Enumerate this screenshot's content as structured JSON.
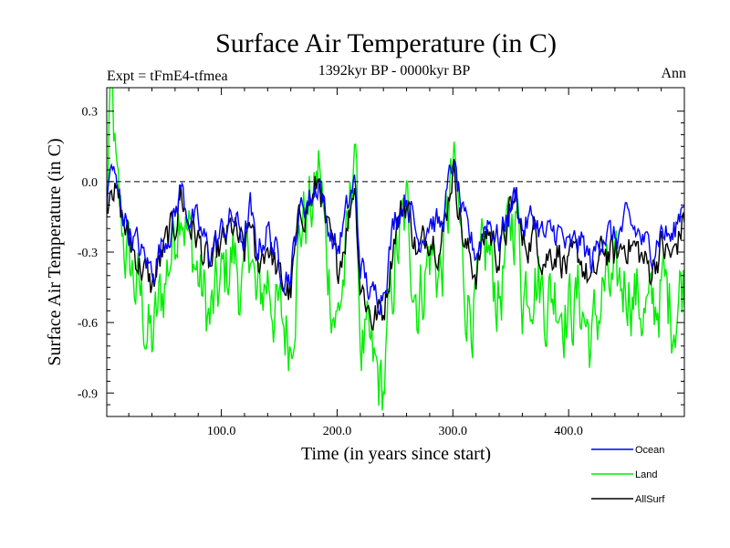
{
  "chart_data": {
    "type": "line",
    "title": "Surface Air Temperature (in C)",
    "subtitle_left": "Expt = tFmE4-tfmea",
    "subtitle_center": "1392kyr BP - 0000kyr BP",
    "subtitle_right": "Ann",
    "xlabel": "Time (in years since start)",
    "ylabel": "Surface Air Temperature (in C)",
    "xlim": [
      1,
      500
    ],
    "ylim": [
      -1.0,
      0.4
    ],
    "x_ticks": [
      100,
      200,
      300,
      400
    ],
    "x_tick_labels": [
      "100.0",
      "200.0",
      "300.0",
      "400.0"
    ],
    "y_ticks": [
      0.3,
      0.0,
      -0.3,
      -0.6,
      -0.9
    ],
    "y_tick_labels": [
      "0.3",
      "0.0",
      "-0.3",
      "-0.6",
      "-0.9"
    ],
    "reference_line": 0.0,
    "legend_position": "bottom-right",
    "series": [
      {
        "name": "Ocean",
        "color": "#0000ff",
        "anchors": [
          [
            1,
            -0.1
          ],
          [
            5,
            0.08
          ],
          [
            10,
            -0.05
          ],
          [
            20,
            -0.2
          ],
          [
            30,
            -0.3
          ],
          [
            40,
            -0.38
          ],
          [
            50,
            -0.25
          ],
          [
            60,
            -0.15
          ],
          [
            65,
            -0.02
          ],
          [
            70,
            -0.12
          ],
          [
            80,
            -0.2
          ],
          [
            90,
            -0.3
          ],
          [
            100,
            -0.22
          ],
          [
            110,
            -0.15
          ],
          [
            120,
            -0.25
          ],
          [
            125,
            -0.12
          ],
          [
            130,
            -0.3
          ],
          [
            140,
            -0.2
          ],
          [
            150,
            -0.35
          ],
          [
            160,
            -0.4
          ],
          [
            165,
            -0.2
          ],
          [
            170,
            -0.1
          ],
          [
            180,
            -0.05
          ],
          [
            185,
            0.02
          ],
          [
            190,
            -0.15
          ],
          [
            200,
            -0.3
          ],
          [
            210,
            -0.1
          ],
          [
            215,
            0.0
          ],
          [
            220,
            -0.35
          ],
          [
            230,
            -0.5
          ],
          [
            240,
            -0.45
          ],
          [
            250,
            -0.15
          ],
          [
            260,
            -0.05
          ],
          [
            270,
            -0.25
          ],
          [
            280,
            -0.15
          ],
          [
            290,
            -0.2
          ],
          [
            300,
            0.08
          ],
          [
            305,
            -0.05
          ],
          [
            310,
            -0.2
          ],
          [
            320,
            -0.3
          ],
          [
            330,
            -0.15
          ],
          [
            340,
            -0.25
          ],
          [
            350,
            -0.1
          ],
          [
            355,
            -0.05
          ],
          [
            360,
            -0.2
          ],
          [
            370,
            -0.15
          ],
          [
            380,
            -0.25
          ],
          [
            390,
            -0.2
          ],
          [
            400,
            -0.3
          ],
          [
            410,
            -0.25
          ],
          [
            420,
            -0.35
          ],
          [
            430,
            -0.2
          ],
          [
            440,
            -0.25
          ],
          [
            450,
            -0.18
          ],
          [
            460,
            -0.22
          ],
          [
            470,
            -0.3
          ],
          [
            480,
            -0.2
          ],
          [
            490,
            -0.25
          ],
          [
            500,
            -0.05
          ]
        ]
      },
      {
        "name": "Land",
        "color": "#00ee00",
        "anchors": [
          [
            1,
            -0.2
          ],
          [
            3,
            0.25
          ],
          [
            6,
            0.3
          ],
          [
            10,
            -0.1
          ],
          [
            20,
            -0.35
          ],
          [
            30,
            -0.5
          ],
          [
            40,
            -0.7
          ],
          [
            50,
            -0.45
          ],
          [
            60,
            -0.2
          ],
          [
            65,
            0.0
          ],
          [
            70,
            -0.2
          ],
          [
            80,
            -0.4
          ],
          [
            90,
            -0.6
          ],
          [
            100,
            -0.45
          ],
          [
            110,
            -0.3
          ],
          [
            120,
            -0.5
          ],
          [
            125,
            -0.2
          ],
          [
            130,
            -0.55
          ],
          [
            140,
            -0.4
          ],
          [
            150,
            -0.6
          ],
          [
            160,
            -0.65
          ],
          [
            165,
            -0.35
          ],
          [
            170,
            -0.15
          ],
          [
            180,
            -0.1
          ],
          [
            185,
            0.08
          ],
          [
            190,
            -0.3
          ],
          [
            200,
            -0.6
          ],
          [
            210,
            -0.25
          ],
          [
            215,
            0.25
          ],
          [
            220,
            -0.65
          ],
          [
            230,
            -0.8
          ],
          [
            240,
            -0.9
          ],
          [
            245,
            -0.6
          ],
          [
            250,
            -0.35
          ],
          [
            260,
            -0.15
          ],
          [
            270,
            -0.5
          ],
          [
            280,
            -0.3
          ],
          [
            290,
            -0.4
          ],
          [
            300,
            0.05
          ],
          [
            305,
            -0.15
          ],
          [
            310,
            -0.45
          ],
          [
            320,
            -0.55
          ],
          [
            330,
            -0.3
          ],
          [
            340,
            -0.5
          ],
          [
            350,
            -0.2
          ],
          [
            355,
            -0.1
          ],
          [
            360,
            -0.45
          ],
          [
            370,
            -0.35
          ],
          [
            380,
            -0.5
          ],
          [
            390,
            -0.45
          ],
          [
            400,
            -0.55
          ],
          [
            410,
            -0.5
          ],
          [
            420,
            -0.7
          ],
          [
            430,
            -0.45
          ],
          [
            440,
            -0.5
          ],
          [
            450,
            -0.4
          ],
          [
            460,
            -0.5
          ],
          [
            470,
            -0.6
          ],
          [
            480,
            -0.45
          ],
          [
            490,
            -0.55
          ],
          [
            500,
            -0.4
          ]
        ]
      },
      {
        "name": "AllSurf",
        "color": "#000000",
        "anchors": [
          [
            1,
            -0.12
          ],
          [
            5,
            0.05
          ],
          [
            10,
            -0.08
          ],
          [
            20,
            -0.25
          ],
          [
            30,
            -0.35
          ],
          [
            40,
            -0.45
          ],
          [
            50,
            -0.3
          ],
          [
            60,
            -0.18
          ],
          [
            65,
            -0.04
          ],
          [
            70,
            -0.15
          ],
          [
            80,
            -0.25
          ],
          [
            90,
            -0.38
          ],
          [
            100,
            -0.28
          ],
          [
            110,
            -0.2
          ],
          [
            120,
            -0.32
          ],
          [
            125,
            -0.15
          ],
          [
            130,
            -0.38
          ],
          [
            140,
            -0.25
          ],
          [
            150,
            -0.42
          ],
          [
            160,
            -0.48
          ],
          [
            165,
            -0.25
          ],
          [
            170,
            -0.12
          ],
          [
            180,
            -0.07
          ],
          [
            185,
            0.02
          ],
          [
            190,
            -0.2
          ],
          [
            200,
            -0.38
          ],
          [
            210,
            -0.15
          ],
          [
            215,
            0.02
          ],
          [
            220,
            -0.42
          ],
          [
            230,
            -0.58
          ],
          [
            240,
            -0.55
          ],
          [
            250,
            -0.2
          ],
          [
            260,
            -0.08
          ],
          [
            270,
            -0.32
          ],
          [
            280,
            -0.2
          ],
          [
            290,
            -0.27
          ],
          [
            300,
            0.07
          ],
          [
            305,
            -0.08
          ],
          [
            310,
            -0.28
          ],
          [
            320,
            -0.38
          ],
          [
            330,
            -0.2
          ],
          [
            340,
            -0.32
          ],
          [
            350,
            -0.13
          ],
          [
            355,
            -0.07
          ],
          [
            360,
            -0.28
          ],
          [
            370,
            -0.22
          ],
          [
            380,
            -0.32
          ],
          [
            390,
            -0.28
          ],
          [
            400,
            -0.38
          ],
          [
            410,
            -0.32
          ],
          [
            420,
            -0.45
          ],
          [
            430,
            -0.28
          ],
          [
            440,
            -0.33
          ],
          [
            450,
            -0.25
          ],
          [
            460,
            -0.3
          ],
          [
            470,
            -0.38
          ],
          [
            480,
            -0.28
          ],
          [
            490,
            -0.33
          ],
          [
            500,
            -0.15
          ]
        ]
      }
    ]
  }
}
